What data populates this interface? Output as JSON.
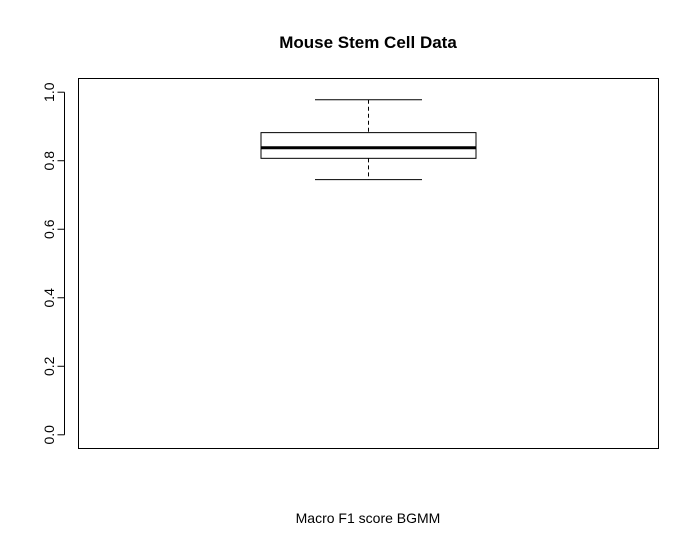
{
  "chart_data": {
    "type": "boxplot",
    "title": "Mouse Stem Cell Data",
    "xlabel": "Macro F1 score BGMM",
    "ylabel": "",
    "ylim": [
      -0.04,
      1.04
    ],
    "yticks": [
      0.0,
      0.2,
      0.4,
      0.6,
      0.8,
      1.0
    ],
    "ytick_labels": [
      "0.0",
      "0.2",
      "0.4",
      "0.6",
      "0.8",
      "1.0"
    ],
    "grid": false,
    "legend": "none",
    "boxes": [
      {
        "whisker_low": 0.745,
        "q1": 0.807,
        "median": 0.838,
        "q3": 0.882,
        "whisker_high": 0.978
      }
    ]
  }
}
